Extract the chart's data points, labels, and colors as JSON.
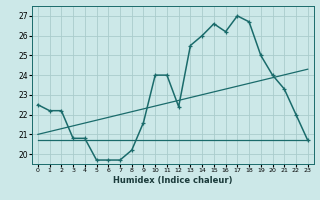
{
  "xlabel": "Humidex (Indice chaleur)",
  "bg_color": "#cce8e8",
  "grid_color": "#aacccc",
  "line_color": "#1a6b6b",
  "xlim": [
    -0.5,
    23.5
  ],
  "ylim": [
    19.5,
    27.5
  ],
  "xticks": [
    0,
    1,
    2,
    3,
    4,
    5,
    6,
    7,
    8,
    9,
    10,
    11,
    12,
    13,
    14,
    15,
    16,
    17,
    18,
    19,
    20,
    21,
    22,
    23
  ],
  "yticks": [
    20,
    21,
    22,
    23,
    24,
    25,
    26,
    27
  ],
  "series1_x": [
    0,
    1,
    2,
    3,
    4,
    5,
    6,
    7,
    8,
    9,
    10,
    11,
    12,
    13,
    14,
    15,
    16,
    17,
    18,
    19,
    20,
    21,
    22,
    23
  ],
  "series1_y": [
    22.5,
    22.2,
    22.2,
    20.8,
    20.8,
    19.7,
    19.7,
    19.7,
    20.2,
    21.6,
    24.0,
    24.0,
    22.4,
    25.5,
    26.0,
    26.6,
    26.2,
    27.0,
    26.7,
    25.0,
    24.0,
    23.3,
    22.0,
    20.7
  ],
  "series2_x": [
    0,
    23
  ],
  "series2_y": [
    20.7,
    20.7
  ],
  "series3_x": [
    0,
    23
  ],
  "series3_y": [
    21.0,
    24.3
  ]
}
